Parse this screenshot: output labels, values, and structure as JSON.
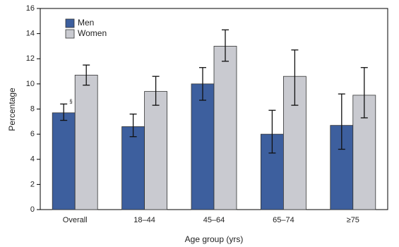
{
  "chart_data": {
    "type": "bar",
    "x_label": "Age group (yrs)",
    "y_label": "Percentage",
    "categories": [
      "Overall",
      "18–44",
      "45–64",
      "65–74",
      "≥75"
    ],
    "series": [
      {
        "name": "Men",
        "color": "#3d5f9e",
        "values": [
          7.7,
          6.6,
          10.0,
          6.0,
          6.7
        ],
        "err_low": [
          7.1,
          5.8,
          8.7,
          4.5,
          4.8
        ],
        "err_high": [
          8.4,
          7.6,
          11.3,
          7.9,
          9.2
        ]
      },
      {
        "name": "Women",
        "color": "#c9cad0",
        "values": [
          10.7,
          9.4,
          13.0,
          10.6,
          9.1
        ],
        "err_low": [
          9.9,
          8.3,
          11.8,
          8.3,
          7.3
        ],
        "err_high": [
          11.5,
          10.6,
          14.3,
          12.7,
          11.3
        ]
      }
    ],
    "annotations": [
      {
        "text": "§",
        "series": 0,
        "category": 0
      }
    ],
    "ylim": [
      0,
      16
    ],
    "yticks": [
      0,
      2,
      4,
      6,
      8,
      10,
      12,
      14,
      16
    ],
    "legend": "upper left"
  }
}
